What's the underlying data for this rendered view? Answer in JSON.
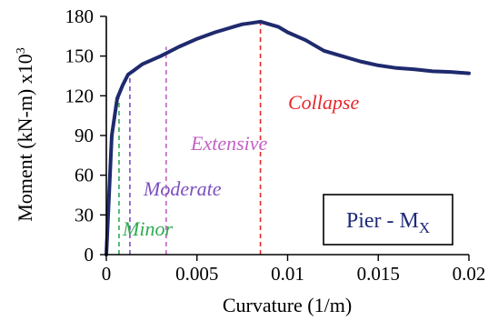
{
  "chart_data": {
    "type": "line",
    "xlabel": "Curvature (1/m)",
    "ylabel": "Moment (kN-m) x10",
    "ylabel_superscript": "3",
    "xlim": [
      0,
      0.02
    ],
    "ylim": [
      0,
      180
    ],
    "x_ticks": [
      0,
      0.005,
      0.01,
      0.015,
      0.02
    ],
    "x_tick_labels": [
      "0",
      "0.005",
      "0.01",
      "0.015",
      "0.02"
    ],
    "y_ticks": [
      0,
      30,
      60,
      90,
      120,
      150,
      180
    ],
    "y_tick_labels": [
      "0",
      "30",
      "60",
      "90",
      "120",
      "150",
      "180"
    ],
    "grid": false,
    "series": [
      {
        "color": "#1f2a6e",
        "x": [
          0,
          0.0003,
          0.0006,
          0.0009,
          0.0012,
          0.0015,
          0.002,
          0.003,
          0.004,
          0.005,
          0.006,
          0.007,
          0.0075,
          0.008,
          0.0085,
          0.009,
          0.0095,
          0.01,
          0.011,
          0.012,
          0.013,
          0.014,
          0.015,
          0.016,
          0.017,
          0.018,
          0.019,
          0.02
        ],
        "y": [
          0,
          90,
          118,
          128,
          136,
          139,
          144,
          150,
          157,
          163,
          168,
          172,
          174,
          175,
          176,
          174,
          172,
          168,
          162,
          154,
          150,
          146,
          143,
          141,
          140,
          138.5,
          138,
          137
        ]
      }
    ],
    "damage_states": [
      {
        "label": "Minor",
        "x": 0.0007,
        "y_top": 118,
        "color": "#2eaa52"
      },
      {
        "label": "Moderate",
        "x": 0.0013,
        "y_top": 136,
        "color": "#7b4fc0"
      },
      {
        "label": "Extensive",
        "x": 0.0033,
        "y_top": 157,
        "color": "#c461c4"
      },
      {
        "label": "Collapse",
        "x": 0.0085,
        "y_top": 176,
        "color": "#e8282c"
      }
    ],
    "legend": {
      "text": "Pier - M",
      "subscript": "X",
      "position": "bottom-right"
    }
  }
}
